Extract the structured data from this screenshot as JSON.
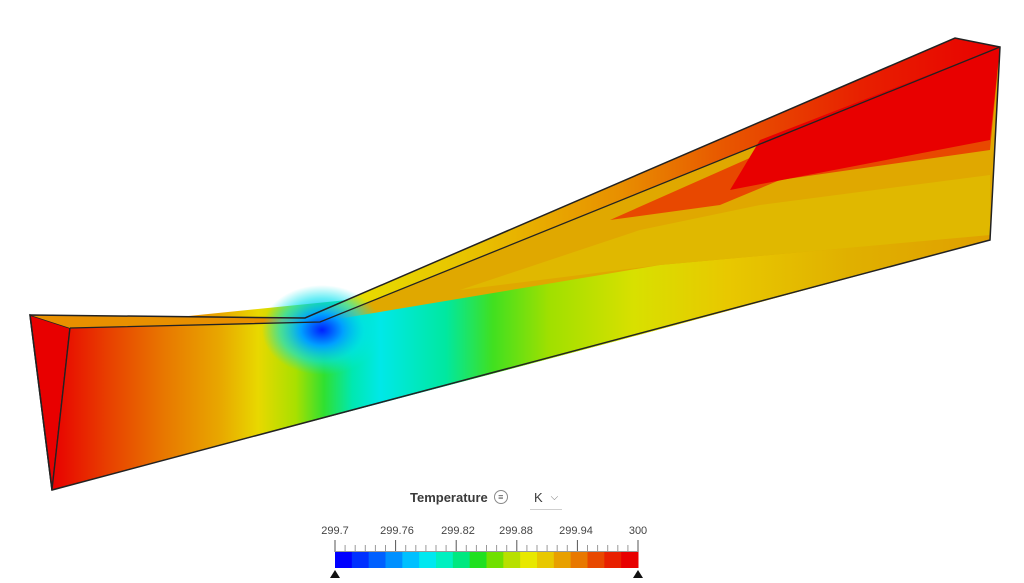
{
  "legend": {
    "title": "Temperature",
    "menu_icon": "list-icon",
    "unit": "K",
    "unit_icon": "chevron-down-icon",
    "tick_labels": [
      "299.7",
      "299.76",
      "299.82",
      "299.88",
      "299.94",
      "300"
    ],
    "min_handle_icon": "triangle-up-icon",
    "max_handle_icon": "triangle-up-icon"
  },
  "colors": {
    "palette": [
      "#0000ff",
      "#0030ff",
      "#0060ff",
      "#0090ff",
      "#00c0ff",
      "#00e8f0",
      "#00f0c0",
      "#00e880",
      "#20e020",
      "#70e000",
      "#b8e000",
      "#e8e800",
      "#e8c800",
      "#e8a000",
      "#e87800",
      "#e84800",
      "#e82000",
      "#e80000"
    ]
  }
}
